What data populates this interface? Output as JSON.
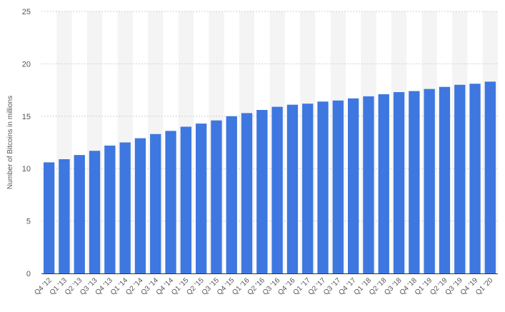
{
  "chart_data": {
    "type": "bar",
    "title": "",
    "xlabel": "",
    "ylabel": "Number of Bitcoins in millions",
    "ylim": [
      0,
      25
    ],
    "yticks": [
      0,
      5,
      10,
      15,
      20,
      25
    ],
    "grid": true,
    "legend": "none",
    "bar_color": "#3e77e0",
    "stripe_color": "#f4f4f4",
    "categories": [
      "Q4 '12",
      "Q1 '13",
      "Q2 '13",
      "Q3 '13",
      "Q4 '13",
      "Q1 '14",
      "Q2 '14",
      "Q3 '14",
      "Q4 '14",
      "Q1 '15",
      "Q2 '15",
      "Q3 '15",
      "Q4 '15",
      "Q1 '16",
      "Q2 '16",
      "Q3 '16",
      "Q4 '16",
      "Q1 '17",
      "Q2 '17",
      "Q3 '17",
      "Q4 '17",
      "Q1 '18",
      "Q2 '18",
      "Q3 '18",
      "Q4 '18",
      "Q1 '19",
      "Q2 '19",
      "Q3 '19",
      "Q4 '19",
      "Q1 '20"
    ],
    "values": [
      10.6,
      10.9,
      11.3,
      11.7,
      12.2,
      12.5,
      12.9,
      13.3,
      13.6,
      14.0,
      14.3,
      14.6,
      15.0,
      15.3,
      15.6,
      15.9,
      16.1,
      16.2,
      16.4,
      16.5,
      16.7,
      16.9,
      17.1,
      17.3,
      17.4,
      17.6,
      17.8,
      18.0,
      18.1,
      18.3
    ]
  }
}
